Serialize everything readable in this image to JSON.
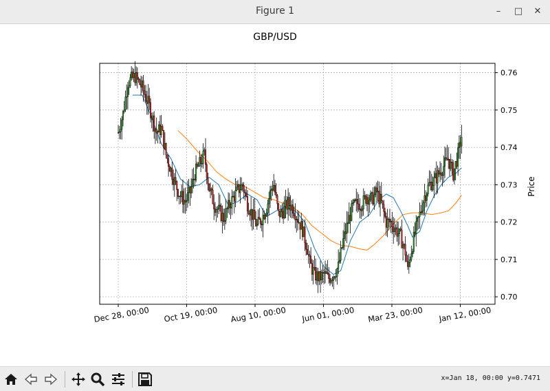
{
  "window": {
    "title": "Figure 1",
    "minimize_glyph": "–",
    "maximize_glyph": "□",
    "close_glyph": "✕"
  },
  "toolbar": {
    "buttons": [
      "home-icon",
      "back-icon",
      "forward-icon",
      "pan-icon",
      "zoom-icon",
      "configure-subplots-icon",
      "save-icon"
    ],
    "status": "x=Jan 18, 00:00 y=0.7471"
  },
  "chart_data": {
    "type": "candlestick",
    "title": "GBP/USD",
    "ylabel": "Price",
    "xlabel": "",
    "ylim": [
      0.698,
      0.7625
    ],
    "yticks": [
      0.7,
      0.71,
      0.72,
      0.73,
      0.74,
      0.75,
      0.76
    ],
    "ytick_labels": [
      "0.70",
      "0.71",
      "0.72",
      "0.73",
      "0.74",
      "0.75",
      "0.76"
    ],
    "xtick_labels": [
      "Dec 28, 00:00",
      "Oct 19, 00:00",
      "Aug 10, 00:00",
      "Jun 01, 00:00",
      "Mar 23, 00:00",
      "Jan 12, 00:00"
    ],
    "grid": true,
    "y_axis_side": "right",
    "colors": {
      "up": "#2ca02c",
      "down": "#d62728",
      "wick": "#000000",
      "ma_fast": "#1f77b4",
      "ma_slow": "#ff7f0e"
    },
    "close_anchors": [
      [
        0,
        0.744
      ],
      [
        4,
        0.749
      ],
      [
        8,
        0.7575
      ],
      [
        14,
        0.759
      ],
      [
        20,
        0.756
      ],
      [
        26,
        0.751
      ],
      [
        32,
        0.744
      ],
      [
        36,
        0.745
      ],
      [
        40,
        0.738
      ],
      [
        44,
        0.734
      ],
      [
        48,
        0.73
      ],
      [
        52,
        0.727
      ],
      [
        56,
        0.7255
      ],
      [
        60,
        0.728
      ],
      [
        64,
        0.733
      ],
      [
        68,
        0.7355
      ],
      [
        72,
        0.738
      ],
      [
        76,
        0.729
      ],
      [
        80,
        0.725
      ],
      [
        84,
        0.723
      ],
      [
        88,
        0.721
      ],
      [
        92,
        0.724
      ],
      [
        96,
        0.7265
      ],
      [
        100,
        0.7285
      ],
      [
        104,
        0.73
      ],
      [
        108,
        0.725
      ],
      [
        112,
        0.722
      ],
      [
        116,
        0.719
      ],
      [
        120,
        0.721
      ],
      [
        124,
        0.724
      ],
      [
        128,
        0.729
      ],
      [
        130,
        0.73
      ],
      [
        134,
        0.722
      ],
      [
        138,
        0.723
      ],
      [
        142,
        0.725
      ],
      [
        146,
        0.724
      ],
      [
        150,
        0.721
      ],
      [
        154,
        0.718
      ],
      [
        158,
        0.713
      ],
      [
        160,
        0.709
      ],
      [
        164,
        0.706
      ],
      [
        168,
        0.705
      ],
      [
        172,
        0.706
      ],
      [
        176,
        0.705
      ],
      [
        180,
        0.706
      ],
      [
        184,
        0.708
      ],
      [
        188,
        0.715
      ],
      [
        192,
        0.72
      ],
      [
        196,
        0.724
      ],
      [
        200,
        0.725
      ],
      [
        204,
        0.725
      ],
      [
        208,
        0.727
      ],
      [
        212,
        0.726
      ],
      [
        216,
        0.728
      ],
      [
        220,
        0.725
      ],
      [
        224,
        0.72
      ],
      [
        228,
        0.72
      ],
      [
        232,
        0.718
      ],
      [
        236,
        0.716
      ],
      [
        240,
        0.712
      ],
      [
        242,
        0.707
      ],
      [
        244,
        0.711
      ],
      [
        248,
        0.717
      ],
      [
        252,
        0.722
      ],
      [
        256,
        0.727
      ],
      [
        260,
        0.73
      ],
      [
        264,
        0.731
      ],
      [
        268,
        0.733
      ],
      [
        272,
        0.735
      ],
      [
        276,
        0.737
      ],
      [
        280,
        0.733
      ],
      [
        284,
        0.738
      ],
      [
        287,
        0.743
      ]
    ],
    "ma_fast": [
      [
        12,
        0.754
      ],
      [
        20,
        0.754
      ],
      [
        28,
        0.748
      ],
      [
        36,
        0.741
      ],
      [
        44,
        0.737
      ],
      [
        52,
        0.7315
      ],
      [
        60,
        0.7295
      ],
      [
        68,
        0.73
      ],
      [
        76,
        0.732
      ],
      [
        84,
        0.73
      ],
      [
        92,
        0.7245
      ],
      [
        100,
        0.7255
      ],
      [
        108,
        0.7275
      ],
      [
        116,
        0.726
      ],
      [
        124,
        0.7215
      ],
      [
        132,
        0.723
      ],
      [
        140,
        0.724
      ],
      [
        148,
        0.723
      ],
      [
        156,
        0.72
      ],
      [
        164,
        0.713
      ],
      [
        172,
        0.708
      ],
      [
        180,
        0.706
      ],
      [
        186,
        0.707
      ],
      [
        194,
        0.715
      ],
      [
        202,
        0.72
      ],
      [
        210,
        0.722
      ],
      [
        218,
        0.726
      ],
      [
        224,
        0.7275
      ],
      [
        230,
        0.7265
      ],
      [
        236,
        0.723
      ],
      [
        242,
        0.719
      ],
      [
        246,
        0.716
      ],
      [
        252,
        0.7175
      ],
      [
        258,
        0.723
      ],
      [
        264,
        0.727
      ],
      [
        270,
        0.73
      ],
      [
        276,
        0.732
      ],
      [
        282,
        0.733
      ],
      [
        287,
        0.7345
      ]
    ],
    "ma_slow": [
      [
        50,
        0.7445
      ],
      [
        58,
        0.742
      ],
      [
        66,
        0.739
      ],
      [
        74,
        0.7365
      ],
      [
        82,
        0.7335
      ],
      [
        90,
        0.7315
      ],
      [
        98,
        0.73
      ],
      [
        106,
        0.7295
      ],
      [
        114,
        0.728
      ],
      [
        122,
        0.7265
      ],
      [
        130,
        0.726
      ],
      [
        138,
        0.725
      ],
      [
        146,
        0.724
      ],
      [
        154,
        0.722
      ],
      [
        162,
        0.719
      ],
      [
        170,
        0.717
      ],
      [
        178,
        0.715
      ],
      [
        186,
        0.7138
      ],
      [
        194,
        0.7135
      ],
      [
        202,
        0.7128
      ],
      [
        208,
        0.7125
      ],
      [
        214,
        0.714
      ],
      [
        222,
        0.7165
      ],
      [
        230,
        0.7195
      ],
      [
        238,
        0.722
      ],
      [
        246,
        0.7225
      ],
      [
        254,
        0.7225
      ],
      [
        262,
        0.722
      ],
      [
        270,
        0.7225
      ],
      [
        276,
        0.723
      ],
      [
        282,
        0.725
      ],
      [
        287,
        0.7272
      ]
    ]
  }
}
